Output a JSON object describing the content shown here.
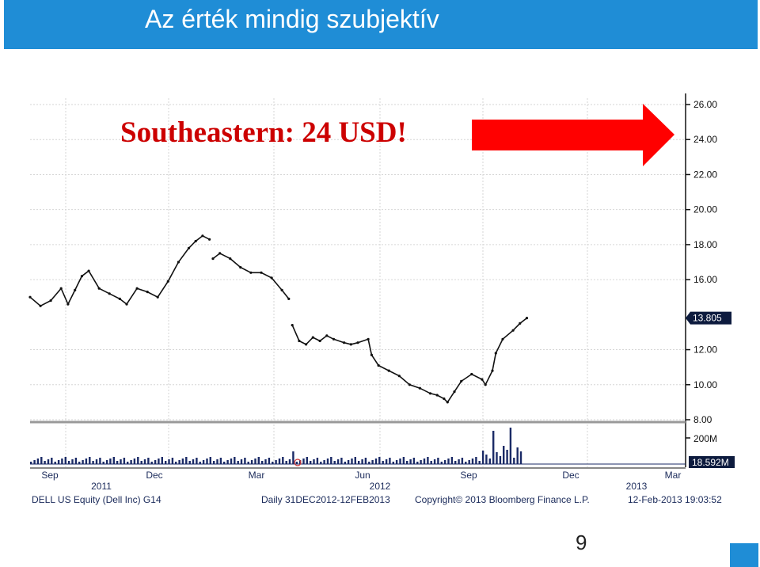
{
  "slide": {
    "title": "Az érték mindig szubjektív",
    "headline": "Southeastern: 24 USD!",
    "page_number": "9",
    "arrow_color": "#ff0000",
    "accent_color": "#1f8dd6"
  },
  "footer": {
    "security": "DELL US Equity (Dell Inc) G14",
    "period": "Daily 31DEC2012-12FEB2013",
    "copyright": "Copyright© 2013 Bloomberg Finance L.P.",
    "timestamp": "12-Feb-2013 19:03:52"
  },
  "chart_data": {
    "type": "line",
    "title": "",
    "xlabel": "",
    "ylabel": "",
    "ylim": [
      8,
      26
    ],
    "y_ticks": [
      "26.00",
      "24.00",
      "22.00",
      "20.00",
      "18.00",
      "16.00",
      "12.00",
      "10.00",
      "8.00"
    ],
    "month_labels": [
      "Sep",
      "Dec",
      "Mar",
      "Jun",
      "Sep",
      "Dec",
      "Mar"
    ],
    "year_labels": [
      "2011",
      "2012",
      "2013"
    ],
    "last_price_label": "13.805",
    "volume": {
      "tick_label": "200M",
      "last_label": "18.592M"
    },
    "series": [
      {
        "values": [
          [
            0,
            15.0
          ],
          [
            3,
            14.5
          ],
          [
            6,
            14.8
          ],
          [
            9,
            15.5
          ],
          [
            11,
            14.6
          ],
          [
            13,
            15.4
          ],
          [
            15,
            16.2
          ],
          [
            17,
            16.5
          ],
          [
            20,
            15.5
          ],
          [
            23,
            15.2
          ],
          [
            26,
            14.9
          ],
          [
            28,
            14.6
          ],
          [
            31,
            15.5
          ],
          [
            34,
            15.3
          ],
          [
            37,
            15.0
          ],
          [
            40,
            15.9
          ],
          [
            43,
            17.0
          ],
          [
            46,
            17.8
          ],
          [
            48,
            18.2
          ],
          [
            50,
            18.5
          ],
          [
            52,
            18.3
          ],
          [
            53,
            17.2
          ],
          [
            55,
            17.5
          ],
          [
            58,
            17.2
          ],
          [
            61,
            16.7
          ],
          [
            64,
            16.4
          ],
          [
            67,
            16.4
          ],
          [
            70,
            16.1
          ],
          [
            73,
            15.4
          ],
          [
            75,
            14.9
          ],
          [
            76,
            13.4
          ],
          [
            78,
            12.5
          ],
          [
            80,
            12.3
          ],
          [
            82,
            12.7
          ],
          [
            84,
            12.5
          ],
          [
            86,
            12.8
          ],
          [
            88,
            12.6
          ],
          [
            91,
            12.4
          ],
          [
            93,
            12.3
          ],
          [
            95,
            12.4
          ],
          [
            98,
            12.6
          ],
          [
            99,
            11.7
          ],
          [
            101,
            11.1
          ],
          [
            104,
            10.8
          ],
          [
            107,
            10.5
          ],
          [
            110,
            10.0
          ],
          [
            113,
            9.8
          ],
          [
            116,
            9.5
          ],
          [
            118,
            9.4
          ],
          [
            120,
            9.2
          ],
          [
            121,
            9.0
          ],
          [
            123,
            9.6
          ],
          [
            125,
            10.2
          ],
          [
            128,
            10.6
          ],
          [
            131,
            10.3
          ],
          [
            132,
            10.0
          ],
          [
            134,
            10.8
          ],
          [
            135,
            11.8
          ],
          [
            137,
            12.6
          ],
          [
            140,
            13.1
          ],
          [
            142,
            13.5
          ],
          [
            144,
            13.805
          ]
        ]
      }
    ]
  }
}
